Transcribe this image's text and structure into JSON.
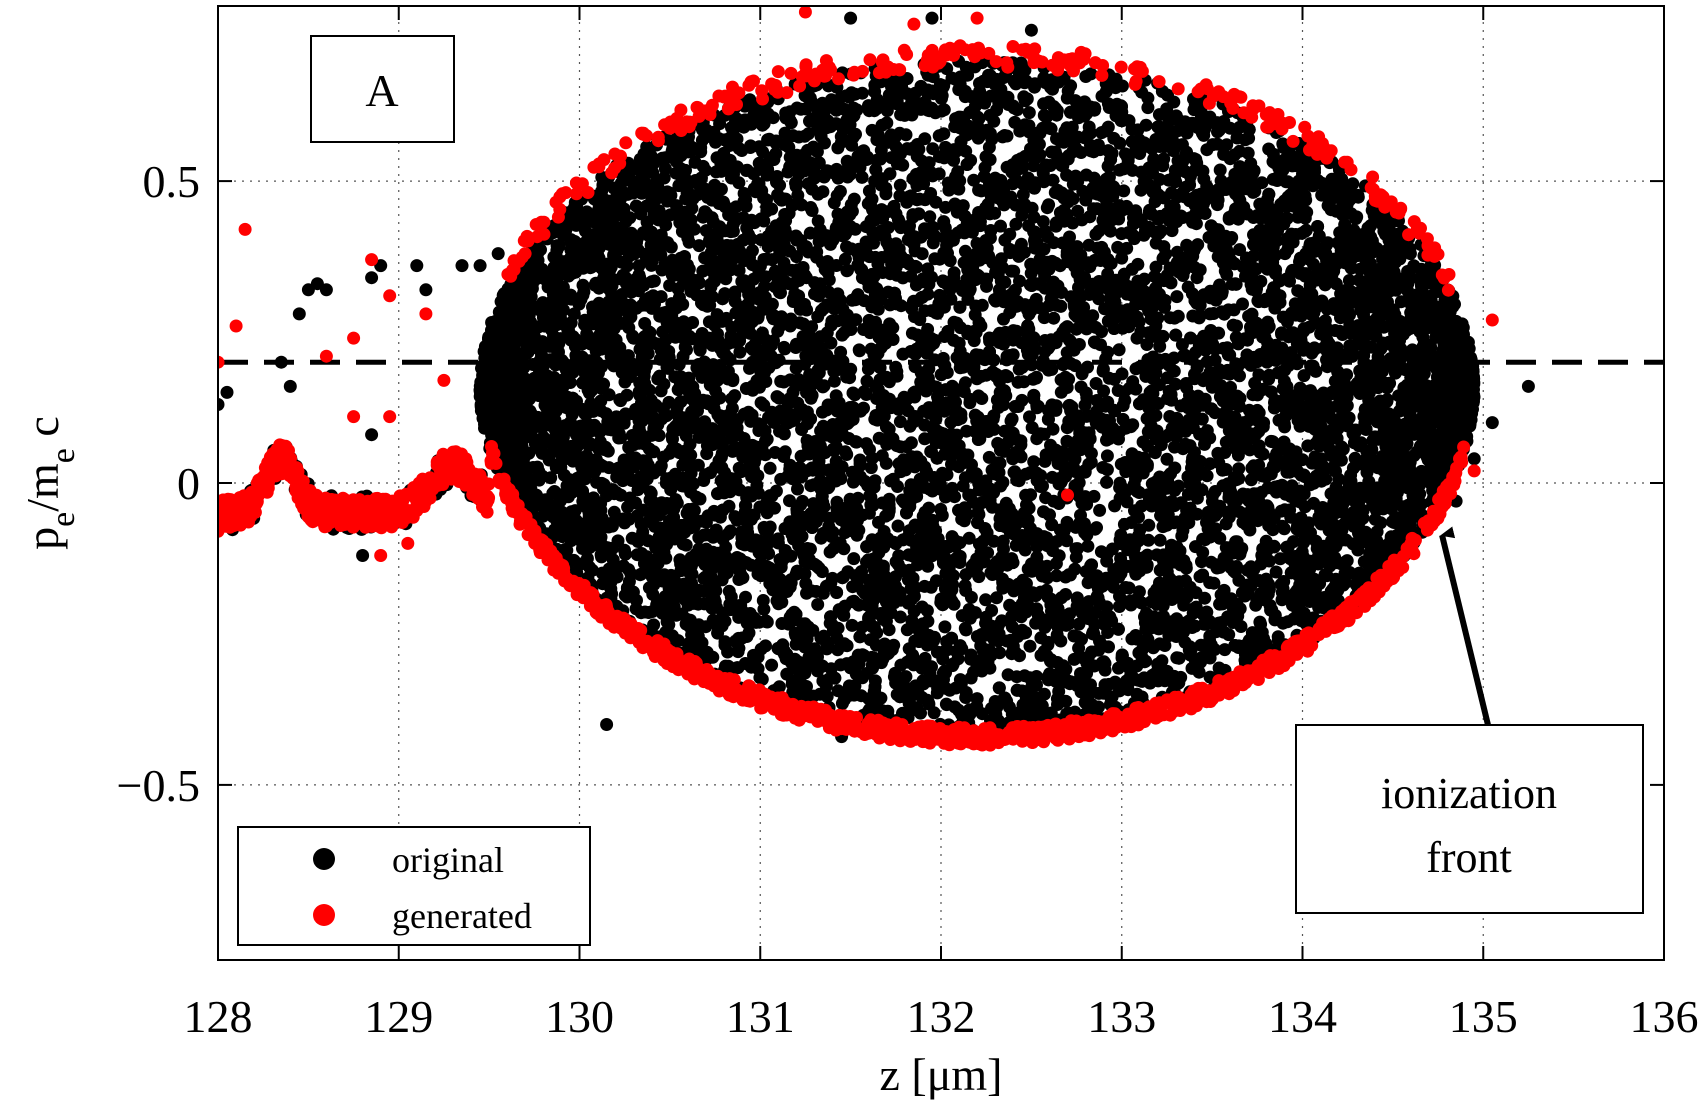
{
  "chart_data": {
    "type": "scatter",
    "panel_label": "A",
    "xlabel": "z [μm]",
    "ylabel": {
      "base1": "p",
      "sub1": "e",
      "mid": "/m",
      "sub2": "e",
      "tail": " c"
    },
    "xlim": [
      128,
      136
    ],
    "ylim": [
      -0.79,
      0.79
    ],
    "xticks": [
      128,
      129,
      130,
      131,
      132,
      133,
      134,
      135,
      136
    ],
    "xtick_labels": [
      "128",
      "129",
      "130",
      "131",
      "132",
      "133",
      "134",
      "135",
      "136"
    ],
    "yticks": [
      -0.5,
      0,
      0.5
    ],
    "ytick_labels": [
      "−0.5",
      "0",
      "0.5"
    ],
    "grid": true,
    "grid_style": "dotted",
    "legend_position": "bottom-left",
    "reference_line": {
      "y": 0.2,
      "style": "dashed",
      "color": "#000000"
    },
    "series": [
      {
        "name": "original",
        "color": "#000000",
        "description_region": {
          "bubble_center": [
            132.2,
            0.15
          ],
          "bubble_half_width": 2.75,
          "bubble_top": 0.7,
          "bubble_bottom": -0.42
        },
        "points": [
          [
            128.0,
            0.13
          ],
          [
            128.05,
            0.15
          ],
          [
            128.0,
            -0.03
          ],
          [
            128.05,
            -0.05
          ],
          [
            128.5,
            0.32
          ],
          [
            128.55,
            0.33
          ],
          [
            128.6,
            0.32
          ],
          [
            128.45,
            0.28
          ],
          [
            128.35,
            0.2
          ],
          [
            128.4,
            0.16
          ],
          [
            128.9,
            0.36
          ],
          [
            128.85,
            0.34
          ],
          [
            129.15,
            0.32
          ],
          [
            129.1,
            0.36
          ],
          [
            129.35,
            0.36
          ],
          [
            128.85,
            0.08
          ],
          [
            128.8,
            -0.12
          ],
          [
            128.9,
            -0.06
          ],
          [
            129.05,
            -0.02
          ],
          [
            130.15,
            -0.4
          ],
          [
            131.45,
            -0.42
          ],
          [
            131.5,
            0.77
          ],
          [
            131.95,
            0.77
          ],
          [
            132.5,
            0.75
          ],
          [
            135.25,
            0.16
          ],
          [
            135.05,
            0.1
          ],
          [
            134.95,
            0.04
          ],
          [
            134.85,
            -0.03
          ],
          [
            129.45,
            0.36
          ],
          [
            129.55,
            0.38
          ]
        ]
      },
      {
        "name": "generated",
        "color": "#ff0000",
        "description_region": {
          "left_curve_x": [
            128.0,
            129.5
          ],
          "bubble_lower_edge_y_min": -0.42,
          "bubble_upper_edge_y_max": 0.78
        },
        "points": [
          [
            128.0,
            0.2
          ],
          [
            128.15,
            0.42
          ],
          [
            128.1,
            0.26
          ],
          [
            128.0,
            -0.08
          ],
          [
            128.6,
            0.21
          ],
          [
            128.75,
            0.24
          ],
          [
            128.85,
            0.37
          ],
          [
            128.95,
            0.31
          ],
          [
            129.15,
            0.28
          ],
          [
            128.75,
            0.11
          ],
          [
            128.95,
            0.11
          ],
          [
            129.25,
            0.17
          ],
          [
            128.9,
            -0.12
          ],
          [
            129.05,
            -0.1
          ],
          [
            132.7,
            -0.02
          ],
          [
            135.05,
            0.27
          ],
          [
            134.95,
            0.02
          ],
          [
            131.25,
            0.78
          ],
          [
            131.85,
            0.76
          ],
          [
            132.2,
            0.77
          ]
        ]
      }
    ],
    "annotation": {
      "lines": [
        "ionization",
        "front"
      ],
      "arrow_to": [
        134.75,
        -0.05
      ]
    }
  }
}
